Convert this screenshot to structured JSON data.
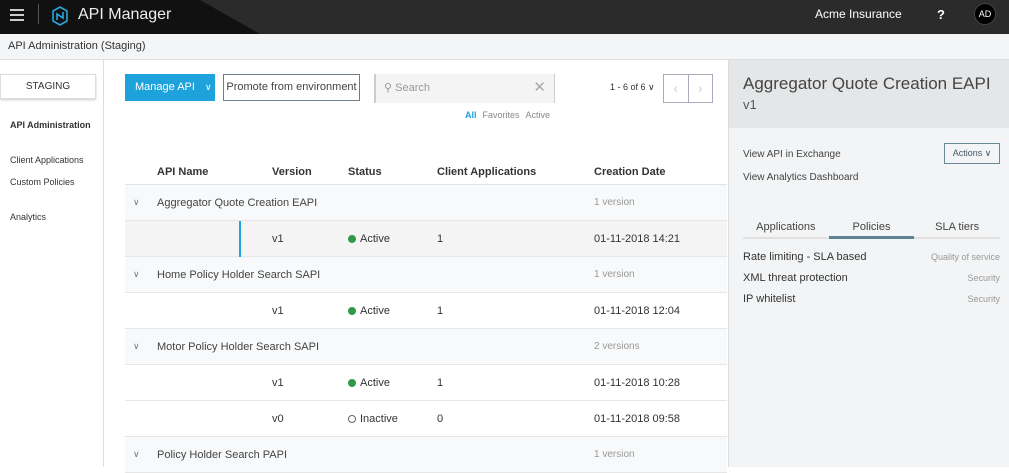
{
  "topbar": {
    "app_title": "API Manager",
    "org": "Acme Insurance",
    "help": "?",
    "avatar": "AD"
  },
  "subheader": {
    "title": "API Administration (Staging)"
  },
  "sidebar": {
    "environment": "STAGING",
    "items": [
      {
        "label": "API Administration"
      },
      {
        "label": "Client Applications"
      },
      {
        "label": "Custom Policies"
      },
      {
        "label": "Analytics"
      }
    ]
  },
  "toolbar": {
    "manage_label": "Manage API",
    "promote_label": "Promote from environment",
    "search_placeholder": "Search",
    "filters": [
      "All",
      "Favorites",
      "Active"
    ],
    "pager": "1 - 6 of 6"
  },
  "table": {
    "headers": [
      "API Name",
      "Version",
      "Status",
      "Client Applications",
      "Creation Date"
    ],
    "groups": [
      {
        "name": "Aggregator Quote Creation EAPI",
        "count": "1 version",
        "versions": [
          {
            "version": "v1",
            "status": "Active",
            "apps": "1",
            "date": "01-11-2018 14:21"
          }
        ]
      },
      {
        "name": "Home Policy Holder Search SAPI",
        "count": "1 version",
        "versions": [
          {
            "version": "v1",
            "status": "Active",
            "apps": "1",
            "date": "01-11-2018 12:04"
          }
        ]
      },
      {
        "name": "Motor Policy Holder Search SAPI",
        "count": "2 versions",
        "versions": [
          {
            "version": "v1",
            "status": "Active",
            "apps": "1",
            "date": "01-11-2018 10:28"
          },
          {
            "version": "v0",
            "status": "Inactive",
            "apps": "0",
            "date": "01-11-2018 09:58"
          }
        ]
      },
      {
        "name": "Policy Holder Search PAPI",
        "count": "1 version",
        "versions": []
      }
    ]
  },
  "panel": {
    "title": "Aggregator Quote Creation EAPI",
    "version": "v1",
    "link_exchange": "View API in Exchange",
    "link_analytics": "View Analytics Dashboard",
    "actions": "Actions",
    "tabs": [
      "Applications",
      "Policies",
      "SLA tiers"
    ],
    "active_tab": "Policies",
    "policies": [
      {
        "name": "Rate limiting - SLA based",
        "category": "Quality of service"
      },
      {
        "name": "XML threat protection",
        "category": "Security"
      },
      {
        "name": "IP whitelist",
        "category": "Security"
      }
    ]
  },
  "colors": {
    "accent": "#1ea2dc",
    "active": "#2e9a47"
  }
}
